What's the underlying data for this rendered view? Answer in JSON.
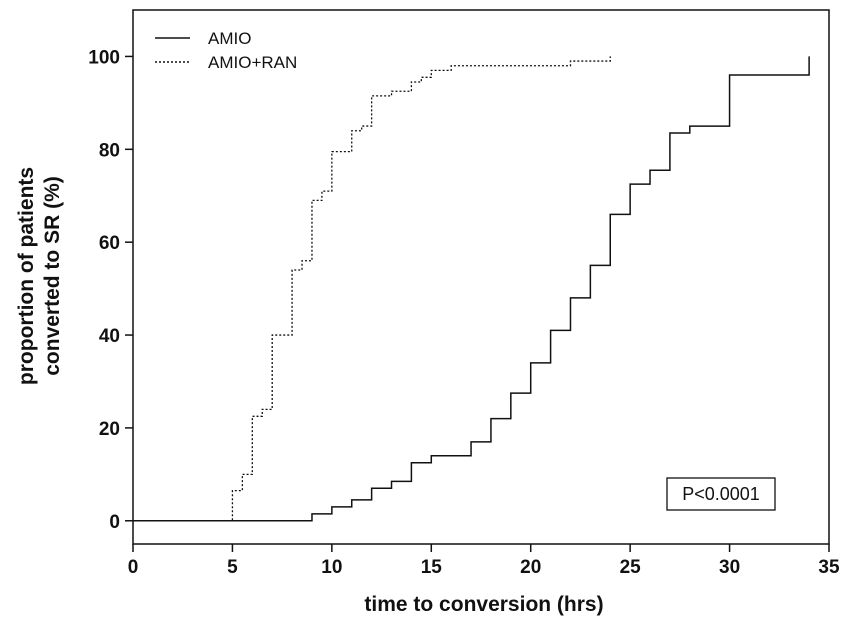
{
  "chart_data": {
    "type": "line",
    "subtype": "step",
    "xlabel": "time to conversion (hrs)",
    "ylabel_lines": [
      "proportion of patients",
      "converted to SR (%)"
    ],
    "xlim": [
      0,
      35
    ],
    "ylim": [
      -5,
      110
    ],
    "x_ticks": [
      0,
      5,
      10,
      15,
      20,
      25,
      30,
      35
    ],
    "y_ticks": [
      0,
      20,
      40,
      60,
      80,
      100
    ],
    "grid": false,
    "legend_position": "top-left",
    "annotation": "P<0.0001",
    "series": [
      {
        "name": "AMIO",
        "style": "solid",
        "x": [
          0,
          9,
          10,
          11,
          12,
          13,
          14,
          15,
          17,
          18,
          19,
          20,
          21,
          22,
          23,
          24,
          25,
          26,
          27,
          28,
          30,
          34
        ],
        "y": [
          0,
          1.5,
          3,
          4.5,
          7,
          8.5,
          12.5,
          14,
          17,
          22,
          27.5,
          34,
          41,
          48,
          55,
          66,
          72.5,
          75.5,
          83.5,
          85,
          96,
          100
        ]
      },
      {
        "name": "AMIO+RAN",
        "style": "dotted",
        "x": [
          0,
          5,
          5.5,
          6,
          6.5,
          7,
          8,
          8.5,
          9,
          9.5,
          10,
          11,
          11.5,
          12,
          13,
          14,
          14.5,
          15,
          16,
          22,
          24
        ],
        "y": [
          0,
          6.5,
          10,
          22.5,
          24,
          40,
          54,
          56,
          69,
          71,
          79.5,
          84,
          85,
          91.5,
          92.5,
          94.5,
          95.5,
          97,
          98,
          99,
          100
        ]
      }
    ]
  }
}
